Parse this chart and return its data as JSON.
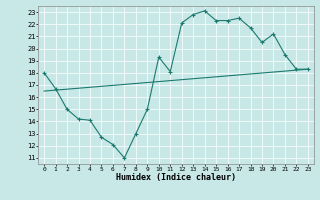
{
  "title": "",
  "xlabel": "Humidex (Indice chaleur)",
  "bg_color": "#c8e8e8",
  "line_color": "#1a7a6e",
  "xlim": [
    -0.5,
    23.5
  ],
  "ylim": [
    10.5,
    23.5
  ],
  "xticks": [
    0,
    1,
    2,
    3,
    4,
    5,
    6,
    7,
    8,
    9,
    10,
    11,
    12,
    13,
    14,
    15,
    16,
    17,
    18,
    19,
    20,
    21,
    22,
    23
  ],
  "yticks": [
    11,
    12,
    13,
    14,
    15,
    16,
    17,
    18,
    19,
    20,
    21,
    22,
    23
  ],
  "line1_x": [
    0,
    1,
    2,
    3,
    4,
    5,
    6,
    7,
    8,
    9,
    10,
    11,
    12,
    13,
    14,
    15,
    16,
    17,
    18,
    19,
    20,
    21,
    22,
    23
  ],
  "line1_y": [
    18,
    16.7,
    15,
    14.2,
    14.1,
    12.7,
    12.1,
    11,
    13,
    15,
    19.3,
    18.1,
    22.1,
    22.8,
    23.1,
    22.3,
    22.3,
    22.5,
    21.7,
    20.5,
    21.2,
    19.5,
    18.3,
    18.3
  ],
  "line2_x": [
    0,
    23
  ],
  "line2_y": [
    16.5,
    18.3
  ],
  "marker": "+"
}
